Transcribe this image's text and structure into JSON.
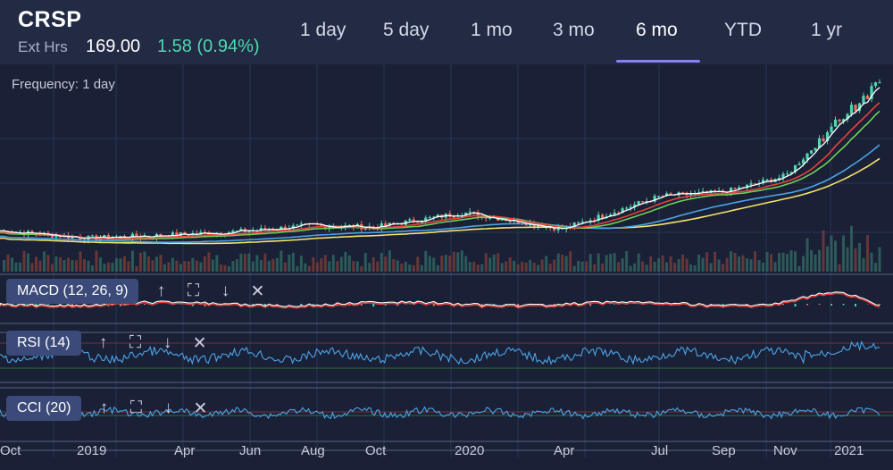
{
  "header": {
    "ticker": "CRSP",
    "ext_hrs_label": "Ext Hrs",
    "price": "169.00",
    "change": "1.58 (0.94%)"
  },
  "tabs": [
    {
      "label": "1 day"
    },
    {
      "label": "5 day"
    },
    {
      "label": "1 mo"
    },
    {
      "label": "3 mo"
    },
    {
      "label": "6 mo",
      "active": true
    },
    {
      "label": "YTD"
    },
    {
      "label": "1 yr"
    }
  ],
  "frequency_label": "Frequency: 1 day",
  "indicators": [
    {
      "label": "MACD (12, 26, 9)"
    },
    {
      "label": "RSI (14)"
    },
    {
      "label": "CCI (20)"
    }
  ],
  "icons": {
    "up": "arrow-up-icon",
    "expand": "expand-icon",
    "down": "arrow-down-icon",
    "remove": "close-icon"
  },
  "colors": {
    "background": "#1a2036",
    "header": "#222a44",
    "up_candle": "#4fd8b0",
    "down_candle": "#f0715a",
    "ma_short": "#ffffff",
    "ma_red": "#e8433a",
    "ma_green": "#6fcf56",
    "ma_blue": "#4aa3e6",
    "ma_yellow": "#f4e46e",
    "rsi_line": "#4aa3e6",
    "active_tab": "#8b7ff5"
  },
  "chart_data": {
    "type": "line",
    "x_tick_labels": [
      "Oct",
      "2019",
      "Apr",
      "Jun",
      "Aug",
      "Oct",
      "2020",
      "Apr",
      "Jul",
      "Sep",
      "Nov",
      "2021"
    ],
    "price_series_approx": {
      "x": [
        "Oct",
        "2019",
        "Apr",
        "Jun",
        "Aug",
        "Oct",
        "2020",
        "Apr",
        "Jul",
        "Sep",
        "Nov",
        "2021"
      ],
      "values": [
        0.14,
        0.1,
        0.12,
        0.14,
        0.17,
        0.16,
        0.24,
        0.15,
        0.33,
        0.35,
        0.44,
        0.97
      ]
    },
    "moving_averages": [
      "white",
      "red",
      "green",
      "blue",
      "yellow"
    ],
    "volume_bars": true,
    "sub_panels": [
      "MACD (12, 26, 9)",
      "RSI (14)",
      "CCI (20)"
    ]
  }
}
